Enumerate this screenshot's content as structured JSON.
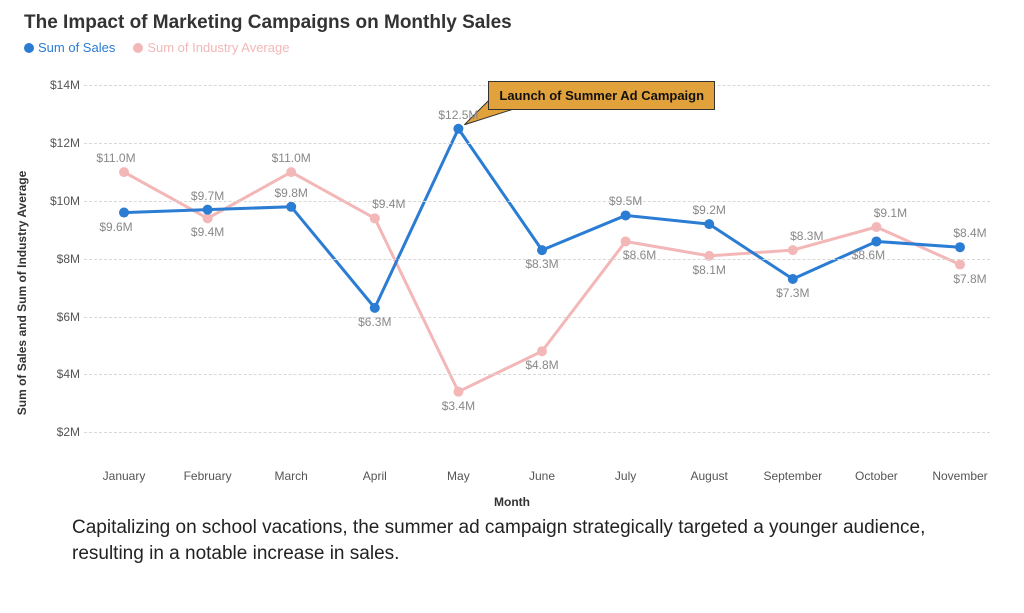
{
  "title": "The Impact of Marketing Campaigns on Monthly Sales",
  "legend": {
    "series1": {
      "label": "Sum of Sales",
      "color": "#2b7cd3"
    },
    "series2": {
      "label": "Sum of Industry Average",
      "color": "#f3b7b7"
    }
  },
  "chart": {
    "type": "line",
    "y_axis_label": "Sum of Sales and Sum of Industry Average",
    "x_axis_label": "Month",
    "y_min": 1.0,
    "y_max": 14.5,
    "y_ticks": [
      2,
      4,
      6,
      8,
      10,
      12,
      14
    ],
    "y_tick_labels": [
      "$2M",
      "$4M",
      "$6M",
      "$8M",
      "$10M",
      "$12M",
      "$14M"
    ],
    "categories": [
      "January",
      "February",
      "March",
      "April",
      "May",
      "June",
      "July",
      "August",
      "September",
      "October",
      "November"
    ],
    "grid_color": "#d8d8d8",
    "background_color": "#ffffff",
    "series": [
      {
        "name": "Sum of Sales",
        "color": "#2b7cd3",
        "line_width": 3,
        "marker_radius": 5,
        "values": [
          9.6,
          9.7,
          9.8,
          6.3,
          12.5,
          8.3,
          9.5,
          9.2,
          7.3,
          8.6,
          8.4
        ],
        "labels": [
          "$9.6M",
          "$9.7M",
          "$9.8M",
          "$6.3M",
          "$12.5M",
          "$8.3M",
          "$9.5M",
          "$9.2M",
          "$7.3M",
          "$8.6M",
          "$8.4M"
        ],
        "label_offsets": [
          {
            "dx": -8,
            "dy": 14
          },
          {
            "dx": 0,
            "dy": -14
          },
          {
            "dx": 0,
            "dy": -14
          },
          {
            "dx": 0,
            "dy": 14
          },
          {
            "dx": 0,
            "dy": -14
          },
          {
            "dx": 0,
            "dy": 14
          },
          {
            "dx": 0,
            "dy": -14
          },
          {
            "dx": 0,
            "dy": -14
          },
          {
            "dx": 0,
            "dy": 14
          },
          {
            "dx": -8,
            "dy": 14
          },
          {
            "dx": 10,
            "dy": -14
          }
        ]
      },
      {
        "name": "Sum of Industry Average",
        "color": "#f3b7b7",
        "line_width": 3,
        "marker_radius": 5,
        "values": [
          11.0,
          9.4,
          11.0,
          9.4,
          3.4,
          4.8,
          8.6,
          8.1,
          8.3,
          9.1,
          7.8
        ],
        "labels": [
          "$11.0M",
          "$9.4M",
          "$11.0M",
          "$9.4M",
          "$3.4M",
          "$4.8M",
          "$8.6M",
          "$8.1M",
          "$8.3M",
          "$9.1M",
          "$7.8M"
        ],
        "label_offsets": [
          {
            "dx": -8,
            "dy": -14
          },
          {
            "dx": 0,
            "dy": 14
          },
          {
            "dx": 0,
            "dy": -14
          },
          {
            "dx": 14,
            "dy": -14
          },
          {
            "dx": 0,
            "dy": 14
          },
          {
            "dx": 0,
            "dy": 14
          },
          {
            "dx": 14,
            "dy": 14
          },
          {
            "dx": 0,
            "dy": 14
          },
          {
            "dx": 14,
            "dy": -14
          },
          {
            "dx": 14,
            "dy": -14
          },
          {
            "dx": 10,
            "dy": 14
          }
        ]
      }
    ],
    "annotation": {
      "text": "Launch of Summer Ad Campaign",
      "bg_color": "#e2a23b",
      "border_color": "#333333",
      "target_index": 4,
      "target_series": 0
    }
  },
  "caption": "Capitalizing on school vacations, the summer ad campaign strategically targeted a younger audience, resulting in a notable increase in sales."
}
